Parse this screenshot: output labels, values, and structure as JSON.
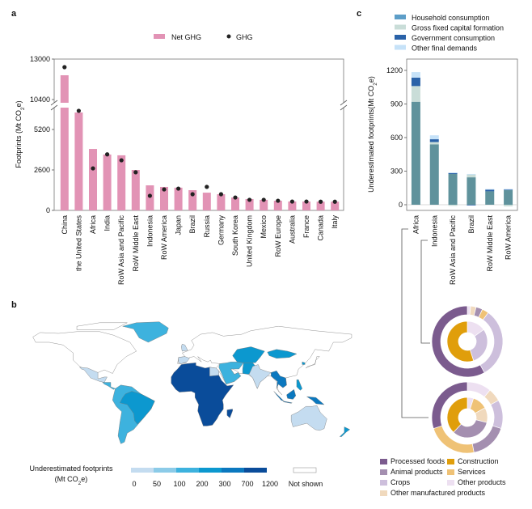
{
  "panels": {
    "a": "a",
    "b": "b",
    "c": "c"
  },
  "chart_data": [
    {
      "type": "bar",
      "panel": "a",
      "ylabel_parts": [
        "Footprints (Mt CO",
        "2",
        "e)"
      ],
      "yticks": [
        0,
        2600,
        5200,
        10400,
        13000
      ],
      "axis_break": true,
      "ylim": [
        0,
        13000
      ],
      "legend": {
        "placement": "top-center",
        "bar_label": "Net GHG",
        "dot_label": "GHG"
      },
      "colors": {
        "bar": "#e293b5",
        "dot": "#222222"
      },
      "categories": [
        "China",
        "the United States",
        "Africa",
        "India",
        "RoW Asia and Pacific",
        "RoW Middle East",
        "Indonesia",
        "RoW America",
        "Japan",
        "Brazil",
        "Russia",
        "Germany",
        "South Korea",
        "United Kingdom",
        "Mexico",
        "RoW Europe",
        "Australia",
        "France",
        "Canada",
        "Italy"
      ],
      "series": [
        {
          "name": "Net GHG",
          "type": "bar",
          "values": [
            11960,
            6290,
            3950,
            3590,
            3540,
            2600,
            1610,
            1510,
            1460,
            1300,
            1140,
            1040,
            830,
            730,
            680,
            620,
            570,
            570,
            560,
            560
          ]
        },
        {
          "name": "GHG",
          "type": "scatter",
          "values": [
            12480,
            6400,
            2700,
            3600,
            3220,
            2450,
            940,
            1350,
            1400,
            1040,
            1510,
            1040,
            830,
            680,
            680,
            620,
            570,
            570,
            560,
            560
          ]
        }
      ]
    },
    {
      "type": "choropleth-map",
      "panel": "b",
      "legend_title": [
        "Underestimated footprints",
        "(Mt CO",
        "2",
        "e)"
      ],
      "bins": [
        "0",
        "50",
        "100",
        "200",
        "300",
        "700",
        "1200"
      ],
      "bin_colors": [
        "#c4dcf0",
        "#8ccbe8",
        "#3db2de",
        "#0c98cf",
        "#0b78bf",
        "#0a4c9a"
      ],
      "not_shown_label": "Not shown"
    },
    {
      "type": "stacked-bar",
      "panel": "c",
      "ylabel_parts": [
        "Underestimated footprints(Mt CO",
        "2",
        "e)"
      ],
      "yticks": [
        0,
        300,
        600,
        900,
        1200
      ],
      "ylim": [
        -50,
        1300
      ],
      "categories": [
        "Africa",
        "Indonesia",
        "RoW Asia and Pacific",
        "Brazil",
        "RoW Middle East",
        "RoW America"
      ],
      "series": [
        {
          "name": "Household consumption",
          "color": "#5f929c",
          "legend_color": "#5d9ec8",
          "values": [
            920,
            540,
            275,
            245,
            120,
            130
          ]
        },
        {
          "name": "Gross fixed capital formation",
          "color": "#c9ddd8",
          "values": [
            140,
            20,
            -10,
            25,
            0,
            -15
          ]
        },
        {
          "name": "Government consumption",
          "color": "#2a62a8",
          "values": [
            75,
            25,
            10,
            -5,
            15,
            8
          ]
        },
        {
          "name": "Other final demands",
          "color": "#c6e2f8",
          "values": [
            50,
            35,
            3,
            5,
            5,
            2
          ]
        }
      ]
    },
    {
      "type": "pie",
      "panel": "c",
      "donuts": [
        {
          "connects_to": "Indonesia",
          "outer": [
            [
              "Other products",
              1.5
            ],
            [
              "Other manufactured products",
              2.5
            ],
            [
              "Animal products",
              3
            ],
            [
              "Services",
              3
            ],
            [
              "Crops",
              32
            ],
            [
              "Processed foods",
              58
            ]
          ],
          "inner": [
            [
              "Other products",
              15
            ],
            [
              "Crops",
              30
            ],
            [
              "Construction",
              55
            ]
          ]
        },
        {
          "connects_to": "Africa",
          "outer": [
            [
              "Other products",
              11
            ],
            [
              "Other manufactured products",
              6
            ],
            [
              "Crops",
              13
            ],
            [
              "Animal products",
              17
            ],
            [
              "Services",
              23
            ],
            [
              "Processed foods",
              30
            ]
          ],
          "inner": [
            [
              "Other products",
              5
            ],
            [
              "Services",
              12
            ],
            [
              "Other manufactured products",
              12
            ],
            [
              "Animal products",
              33
            ],
            [
              "Construction",
              38
            ]
          ]
        }
      ],
      "legend": [
        {
          "name": "Processed foods",
          "color": "#7b5b8e"
        },
        {
          "name": "Construction",
          "color": "#e09e0b"
        },
        {
          "name": "Animal products",
          "color": "#a48fb0"
        },
        {
          "name": "Services",
          "color": "#efc276"
        },
        {
          "name": "Crops",
          "color": "#cdbfdc"
        },
        {
          "name": "Other products",
          "color": "#ede0f1"
        },
        {
          "name": "Other manufactured products",
          "color": "#f0d9bd"
        }
      ]
    }
  ]
}
